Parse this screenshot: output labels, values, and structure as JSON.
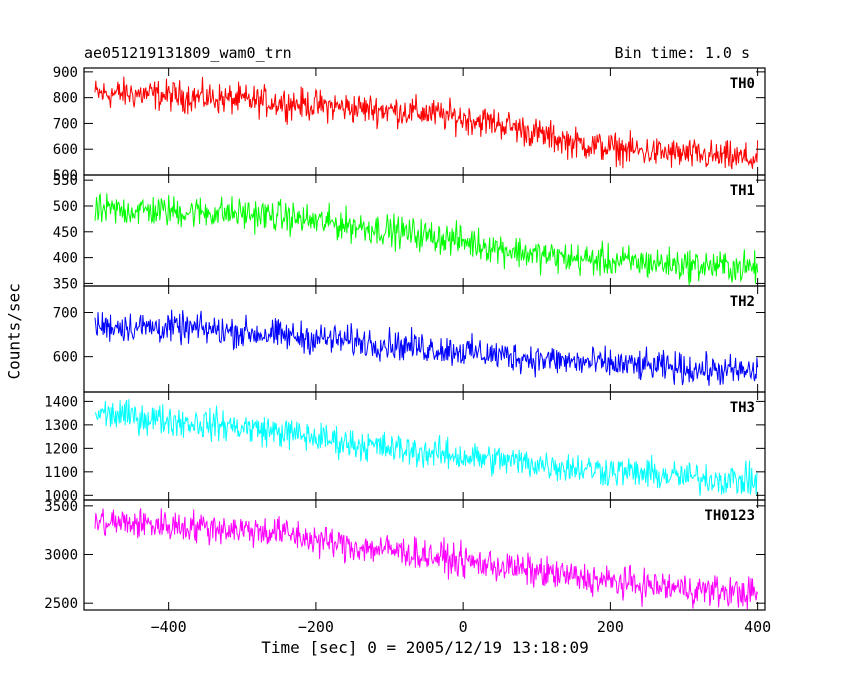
{
  "chart_data": {
    "type": "line",
    "title": "ae051219131809_wam0_trn",
    "subtitle": "Bin time: 1.0 s",
    "xlabel": "Time [sec] 0 = 2005/12/19 13:18:09",
    "ylabel": "Counts/sec",
    "xlim": [
      -515,
      410
    ],
    "x_ticks": [
      -400,
      -200,
      0,
      200,
      400
    ],
    "panels": [
      {
        "name": "TH0",
        "color": "#ff0000",
        "ylim": [
          500,
          915
        ],
        "y_ticks": [
          500,
          600,
          700,
          800,
          900
        ],
        "x": [
          -500,
          -450,
          -400,
          -350,
          -300,
          -250,
          -200,
          -150,
          -100,
          -50,
          0,
          50,
          100,
          150,
          200,
          250,
          300,
          350,
          400
        ],
        "values": [
          815,
          815,
          808,
          800,
          790,
          782,
          770,
          760,
          752,
          740,
          720,
          700,
          660,
          625,
          605,
          590,
          580,
          570,
          560
        ]
      },
      {
        "name": "TH1",
        "color": "#00ff00",
        "ylim": [
          345,
          560
        ],
        "y_ticks": [
          350,
          400,
          450,
          500,
          550
        ],
        "x": [
          -500,
          -450,
          -400,
          -350,
          -300,
          -250,
          -200,
          -150,
          -100,
          -50,
          0,
          50,
          100,
          150,
          200,
          250,
          300,
          350,
          400
        ],
        "values": [
          490,
          492,
          490,
          488,
          485,
          480,
          470,
          462,
          452,
          443,
          432,
          418,
          405,
          398,
          393,
          390,
          386,
          383,
          380
        ]
      },
      {
        "name": "TH2",
        "color": "#0000ff",
        "ylim": [
          520,
          760
        ],
        "y_ticks": [
          600,
          700
        ],
        "x": [
          -500,
          -450,
          -400,
          -350,
          -300,
          -250,
          -200,
          -150,
          -100,
          -50,
          0,
          50,
          100,
          150,
          200,
          250,
          300,
          350,
          400
        ],
        "values": [
          670,
          668,
          665,
          662,
          655,
          648,
          642,
          635,
          628,
          620,
          612,
          603,
          595,
          588,
          583,
          578,
          573,
          568,
          565
        ]
      },
      {
        "name": "TH3",
        "color": "#00ffff",
        "ylim": [
          980,
          1440
        ],
        "y_ticks": [
          1000,
          1100,
          1200,
          1300,
          1400
        ],
        "x": [
          -500,
          -450,
          -400,
          -350,
          -300,
          -250,
          -200,
          -150,
          -100,
          -50,
          0,
          50,
          100,
          150,
          200,
          250,
          300,
          350,
          400
        ],
        "values": [
          1350,
          1335,
          1320,
          1305,
          1290,
          1270,
          1245,
          1220,
          1200,
          1182,
          1165,
          1150,
          1135,
          1118,
          1105,
          1090,
          1078,
          1068,
          1060
        ]
      },
      {
        "name": "TH0123",
        "color": "#ff00ff",
        "ylim": [
          2430,
          3560
        ],
        "y_ticks": [
          2500,
          3000,
          3500
        ],
        "x": [
          -500,
          -450,
          -400,
          -350,
          -300,
          -250,
          -200,
          -150,
          -100,
          -50,
          0,
          50,
          100,
          150,
          200,
          250,
          300,
          350,
          400
        ],
        "values": [
          3330,
          3320,
          3300,
          3280,
          3255,
          3230,
          3150,
          3080,
          3050,
          2990,
          2930,
          2880,
          2820,
          2770,
          2720,
          2680,
          2650,
          2620,
          2600
        ]
      }
    ]
  }
}
